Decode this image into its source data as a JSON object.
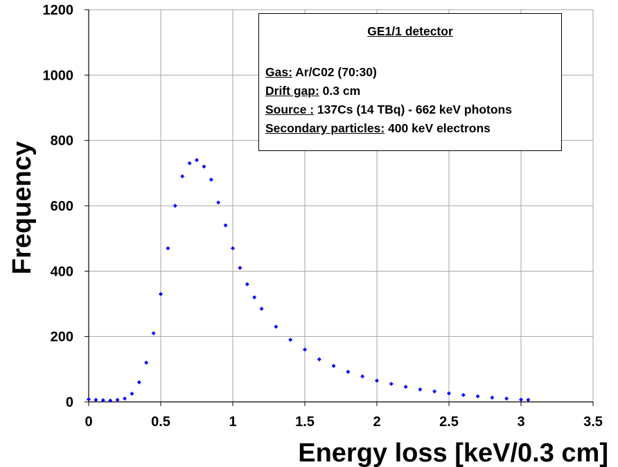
{
  "chart_data": {
    "type": "scatter",
    "xlabel": "Energy loss [keV/0.3 cm]",
    "ylabel": "Frequency",
    "xlim": [
      0,
      3.5
    ],
    "ylim": [
      0,
      1200
    ],
    "x_ticks": [
      "0",
      "0.5",
      "1",
      "1.5",
      "2",
      "2.5",
      "3",
      "3.5"
    ],
    "y_ticks": [
      "0",
      "200",
      "400",
      "600",
      "800",
      "1000",
      "1200"
    ],
    "grid": true,
    "marker_color": "#0000ff",
    "series": [
      {
        "marker": "diamond",
        "points": [
          [
            0.0,
            8
          ],
          [
            0.05,
            6
          ],
          [
            0.1,
            5
          ],
          [
            0.15,
            4
          ],
          [
            0.2,
            6
          ],
          [
            0.25,
            10
          ],
          [
            0.3,
            25
          ],
          [
            0.35,
            60
          ],
          [
            0.4,
            120
          ],
          [
            0.45,
            210
          ],
          [
            0.5,
            330
          ],
          [
            0.55,
            470
          ],
          [
            0.6,
            600
          ],
          [
            0.65,
            690
          ],
          [
            0.7,
            730
          ],
          [
            0.75,
            740
          ],
          [
            0.8,
            720
          ],
          [
            0.85,
            680
          ],
          [
            0.9,
            610
          ],
          [
            0.95,
            540
          ],
          [
            1.0,
            470
          ],
          [
            1.05,
            410
          ],
          [
            1.1,
            360
          ],
          [
            1.15,
            320
          ],
          [
            1.2,
            285
          ],
          [
            1.3,
            230
          ],
          [
            1.4,
            190
          ],
          [
            1.5,
            160
          ],
          [
            1.6,
            130
          ],
          [
            1.7,
            110
          ],
          [
            1.8,
            92
          ],
          [
            1.9,
            78
          ],
          [
            2.0,
            65
          ],
          [
            2.1,
            55
          ],
          [
            2.2,
            46
          ],
          [
            2.3,
            38
          ],
          [
            2.4,
            32
          ],
          [
            2.5,
            26
          ],
          [
            2.6,
            21
          ],
          [
            2.7,
            17
          ],
          [
            2.8,
            13
          ],
          [
            2.9,
            10
          ],
          [
            3.0,
            7
          ],
          [
            3.05,
            6
          ]
        ]
      }
    ],
    "legend_box": {
      "title": "GE1/1 detector",
      "lines": [
        {
          "key": "Gas:",
          "value": " Ar/C02 (70:30)"
        },
        {
          "key": "Drift gap:",
          "value": " 0.3 cm"
        },
        {
          "key": "Source :",
          "value": " 137Cs (14 TBq) - 662 keV photons"
        },
        {
          "key": "Secondary particles:",
          "value": " 400 keV electrons"
        }
      ]
    }
  }
}
